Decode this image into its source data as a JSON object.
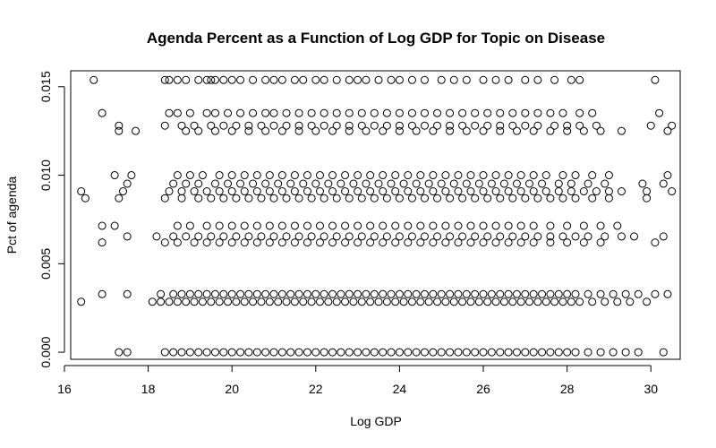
{
  "chart_data": {
    "type": "scatter",
    "title": "Agenda Percent as a Function of Log GDP for Topic on Disease",
    "xlabel": "Log GDP",
    "ylabel": "Pct of agenda",
    "xlim": [
      16.15,
      30.7
    ],
    "ylim": [
      -0.0004,
      0.0159
    ],
    "x_ticks": [
      16,
      18,
      20,
      22,
      24,
      26,
      28,
      30
    ],
    "x_tick_labels": [
      "16",
      "18",
      "20",
      "22",
      "24",
      "26",
      "28",
      "30"
    ],
    "y_ticks": [
      0.0,
      0.005,
      0.01,
      0.015
    ],
    "y_tick_labels": [
      "0.000",
      "0.005",
      "0.010",
      "0.015"
    ],
    "grid": false,
    "marker": "open-circle",
    "series": [
      {
        "y_level": 0.01538,
        "x": [
          16.7,
          18.4,
          18.5,
          18.7,
          18.9,
          19.2,
          19.4,
          19.5,
          19.6,
          19.8,
          20.0,
          20.2,
          20.5,
          20.8,
          21.0,
          21.2,
          21.5,
          21.7,
          22.0,
          22.2,
          22.5,
          22.8,
          23.0,
          23.2,
          23.5,
          23.8,
          24.0,
          24.3,
          24.6,
          25.0,
          25.3,
          25.6,
          26.0,
          26.3,
          26.6,
          27.0,
          27.3,
          27.7,
          28.1,
          28.3,
          30.1
        ]
      },
      {
        "y_level": 0.01351,
        "x": [
          16.9,
          18.5,
          18.7,
          19.0,
          19.4,
          19.6,
          19.9,
          20.2,
          20.5,
          20.8,
          21.0,
          21.3,
          21.6,
          21.9,
          22.2,
          22.5,
          22.8,
          23.1,
          23.4,
          23.7,
          24.0,
          24.3,
          24.6,
          24.9,
          25.2,
          25.5,
          25.8,
          26.1,
          26.4,
          26.7,
          27.0,
          27.3,
          27.6,
          27.9,
          28.3,
          28.6,
          30.2
        ]
      },
      {
        "y_level": 0.0128,
        "x": [
          17.3,
          18.4,
          18.8,
          19.1,
          19.5,
          19.8,
          20.1,
          20.4,
          20.7,
          21.0,
          21.3,
          21.6,
          21.9,
          22.2,
          22.5,
          22.8,
          23.1,
          23.4,
          23.7,
          24.0,
          24.3,
          24.6,
          24.9,
          25.2,
          25.5,
          25.8,
          26.1,
          26.4,
          26.7,
          27.0,
          27.3,
          27.7,
          28.0,
          28.3,
          28.7,
          30.0,
          30.5
        ]
      },
      {
        "y_level": 0.0125,
        "x": [
          17.3,
          17.7,
          18.9,
          19.2,
          19.6,
          20.0,
          20.4,
          20.8,
          21.2,
          21.6,
          22.0,
          22.4,
          22.8,
          23.2,
          23.6,
          24.0,
          24.4,
          24.8,
          25.2,
          25.6,
          26.0,
          26.4,
          26.8,
          27.2,
          27.6,
          28.0,
          28.4,
          28.8,
          29.3,
          30.4
        ]
      },
      {
        "y_level": 0.01,
        "x": [
          17.2,
          17.6,
          18.7,
          19.0,
          19.3,
          19.7,
          20.0,
          20.3,
          20.6,
          20.9,
          21.2,
          21.5,
          21.8,
          22.1,
          22.4,
          22.7,
          23.0,
          23.3,
          23.6,
          23.9,
          24.2,
          24.5,
          24.8,
          25.1,
          25.4,
          25.7,
          26.0,
          26.3,
          26.6,
          26.9,
          27.2,
          27.5,
          27.9,
          28.2,
          28.6,
          29.0,
          30.4
        ]
      },
      {
        "y_level": 0.00952,
        "x": [
          17.5,
          18.6,
          18.9,
          19.2,
          19.6,
          19.9,
          20.2,
          20.5,
          20.8,
          21.1,
          21.4,
          21.7,
          22.0,
          22.3,
          22.6,
          22.9,
          23.2,
          23.5,
          23.8,
          24.1,
          24.4,
          24.7,
          25.0,
          25.3,
          25.6,
          25.9,
          26.2,
          26.5,
          26.8,
          27.1,
          27.4,
          27.8,
          28.1,
          28.5,
          28.9,
          29.8,
          30.3
        ]
      },
      {
        "y_level": 0.00909,
        "x": [
          16.4,
          17.4,
          18.5,
          18.8,
          19.1,
          19.4,
          19.7,
          20.0,
          20.3,
          20.6,
          20.9,
          21.2,
          21.5,
          21.8,
          22.1,
          22.4,
          22.7,
          23.0,
          23.3,
          23.6,
          23.9,
          24.2,
          24.5,
          24.8,
          25.1,
          25.4,
          25.7,
          26.0,
          26.3,
          26.6,
          26.9,
          27.2,
          27.5,
          27.8,
          28.1,
          28.4,
          28.7,
          29.0,
          29.3,
          29.9,
          30.5
        ]
      },
      {
        "y_level": 0.0087,
        "x": [
          16.5,
          17.3,
          18.4,
          18.8,
          19.2,
          19.5,
          19.8,
          20.1,
          20.4,
          20.7,
          21.0,
          21.3,
          21.6,
          21.9,
          22.2,
          22.5,
          22.8,
          23.1,
          23.4,
          23.7,
          24.0,
          24.3,
          24.6,
          24.9,
          25.2,
          25.5,
          25.8,
          26.1,
          26.4,
          26.7,
          27.0,
          27.3,
          27.6,
          27.9,
          28.2,
          28.6,
          29.0,
          29.9
        ]
      },
      {
        "y_level": 0.00714,
        "x": [
          16.9,
          17.2,
          18.7,
          19.0,
          19.4,
          19.7,
          20.0,
          20.3,
          20.6,
          20.9,
          21.2,
          21.5,
          21.8,
          22.1,
          22.4,
          22.7,
          23.0,
          23.3,
          23.6,
          23.9,
          24.2,
          24.5,
          24.8,
          25.1,
          25.4,
          25.7,
          26.0,
          26.3,
          26.6,
          26.9,
          27.2,
          27.6,
          28.0,
          28.4,
          28.8,
          29.2
        ]
      },
      {
        "y_level": 0.00654,
        "x": [
          17.5,
          18.2,
          18.6,
          18.9,
          19.2,
          19.5,
          19.8,
          20.1,
          20.4,
          20.7,
          21.0,
          21.3,
          21.6,
          21.9,
          22.2,
          22.5,
          22.8,
          23.1,
          23.4,
          23.7,
          24.0,
          24.3,
          24.6,
          24.9,
          25.2,
          25.5,
          25.8,
          26.1,
          26.4,
          26.7,
          27.0,
          27.3,
          27.6,
          27.9,
          28.2,
          28.5,
          28.9,
          29.3,
          29.6,
          30.3
        ]
      },
      {
        "y_level": 0.0062,
        "x": [
          16.9,
          18.4,
          18.7,
          19.1,
          19.4,
          19.7,
          20.0,
          20.3,
          20.6,
          20.9,
          21.2,
          21.5,
          21.8,
          22.1,
          22.4,
          22.7,
          23.0,
          23.3,
          23.6,
          23.9,
          24.2,
          24.5,
          24.8,
          25.1,
          25.4,
          25.7,
          26.0,
          26.3,
          26.6,
          26.9,
          27.2,
          27.6,
          28.0,
          28.4,
          28.8,
          30.1
        ]
      },
      {
        "y_level": 0.00328,
        "x": [
          16.9,
          17.5,
          18.3,
          18.6,
          18.8,
          19.0,
          19.2,
          19.4,
          19.6,
          19.8,
          20.0,
          20.2,
          20.4,
          20.6,
          20.8,
          21.0,
          21.2,
          21.4,
          21.6,
          21.8,
          22.0,
          22.2,
          22.4,
          22.6,
          22.8,
          23.0,
          23.2,
          23.4,
          23.6,
          23.8,
          24.0,
          24.2,
          24.4,
          24.6,
          24.8,
          25.0,
          25.2,
          25.4,
          25.6,
          25.8,
          26.0,
          26.2,
          26.4,
          26.6,
          26.8,
          27.0,
          27.2,
          27.4,
          27.6,
          27.8,
          28.0,
          28.2,
          28.5,
          28.8,
          29.1,
          29.4,
          29.7,
          30.1,
          30.4
        ]
      },
      {
        "y_level": 0.00285,
        "x": [
          16.4,
          18.1,
          18.3,
          18.5,
          18.7,
          18.9,
          19.1,
          19.3,
          19.5,
          19.7,
          19.9,
          20.1,
          20.3,
          20.5,
          20.7,
          20.9,
          21.1,
          21.3,
          21.5,
          21.7,
          21.9,
          22.1,
          22.3,
          22.5,
          22.7,
          22.9,
          23.1,
          23.3,
          23.5,
          23.7,
          23.9,
          24.1,
          24.3,
          24.5,
          24.7,
          24.9,
          25.1,
          25.3,
          25.5,
          25.7,
          25.9,
          26.1,
          26.3,
          26.5,
          26.7,
          26.9,
          27.1,
          27.3,
          27.5,
          27.7,
          27.9,
          28.1,
          28.3,
          28.6,
          28.9,
          29.2,
          29.5,
          29.9
        ]
      },
      {
        "y_level": 0.0,
        "x": [
          17.3,
          17.5,
          18.4,
          18.6,
          18.8,
          19.0,
          19.2,
          19.4,
          19.6,
          19.8,
          20.0,
          20.2,
          20.4,
          20.6,
          20.8,
          21.0,
          21.2,
          21.4,
          21.6,
          21.8,
          22.0,
          22.2,
          22.4,
          22.6,
          22.8,
          23.0,
          23.2,
          23.4,
          23.6,
          23.8,
          24.0,
          24.2,
          24.4,
          24.6,
          24.8,
          25.0,
          25.2,
          25.4,
          25.6,
          25.8,
          26.0,
          26.2,
          26.4,
          26.6,
          26.8,
          27.0,
          27.2,
          27.4,
          27.6,
          27.8,
          28.0,
          28.2,
          28.5,
          28.8,
          29.1,
          29.4,
          29.7,
          30.3
        ]
      }
    ]
  }
}
